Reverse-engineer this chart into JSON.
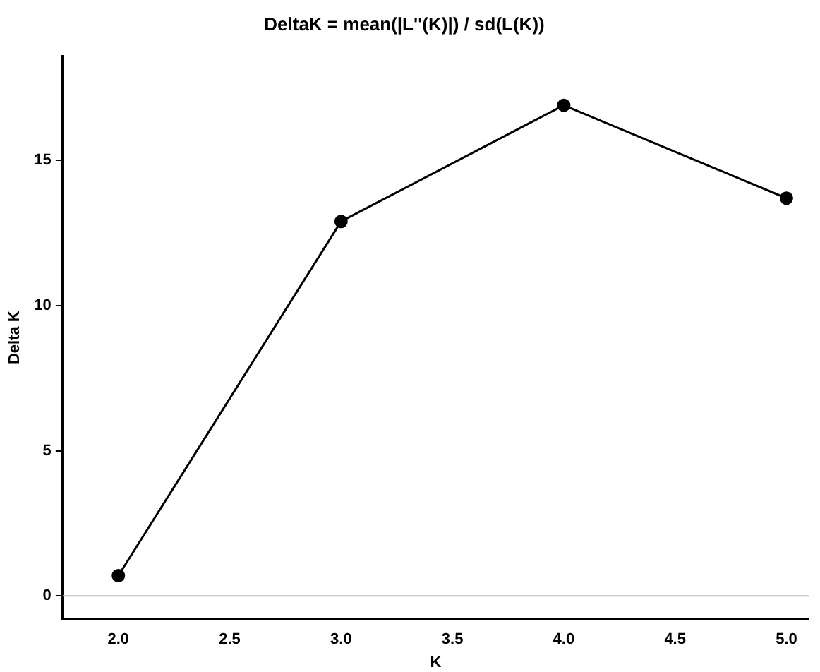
{
  "chart_data": {
    "type": "line",
    "title": "DeltaK = mean(|L''(K)|) / sd(L(K))",
    "xlabel": "K",
    "ylabel": "Delta K",
    "x": [
      2,
      3,
      4,
      5
    ],
    "series": [
      {
        "color": "#000000",
        "values": [
          0.7,
          12.9,
          16.9,
          13.7
        ]
      }
    ],
    "xlim": [
      1.75,
      5.1
    ],
    "xticks": [
      {
        "value": 2,
        "label": "2.0"
      },
      {
        "value": 2.5,
        "label": "2.5"
      },
      {
        "value": 3,
        "label": "3.0"
      },
      {
        "value": 3.5,
        "label": "3.5"
      },
      {
        "value": 4,
        "label": "4.0"
      },
      {
        "value": 4.5,
        "label": "4.5"
      },
      {
        "value": 5,
        "label": "5.0"
      }
    ],
    "ylim": [
      -0.8,
      18.6
    ],
    "yticks": [
      0,
      5,
      10,
      15
    ],
    "ref_lines": [
      {
        "axis": "y",
        "value": 0,
        "color": "#bbbbbb"
      }
    ],
    "grid": false,
    "legend": false,
    "marker": "circle",
    "line_style": "solid"
  }
}
